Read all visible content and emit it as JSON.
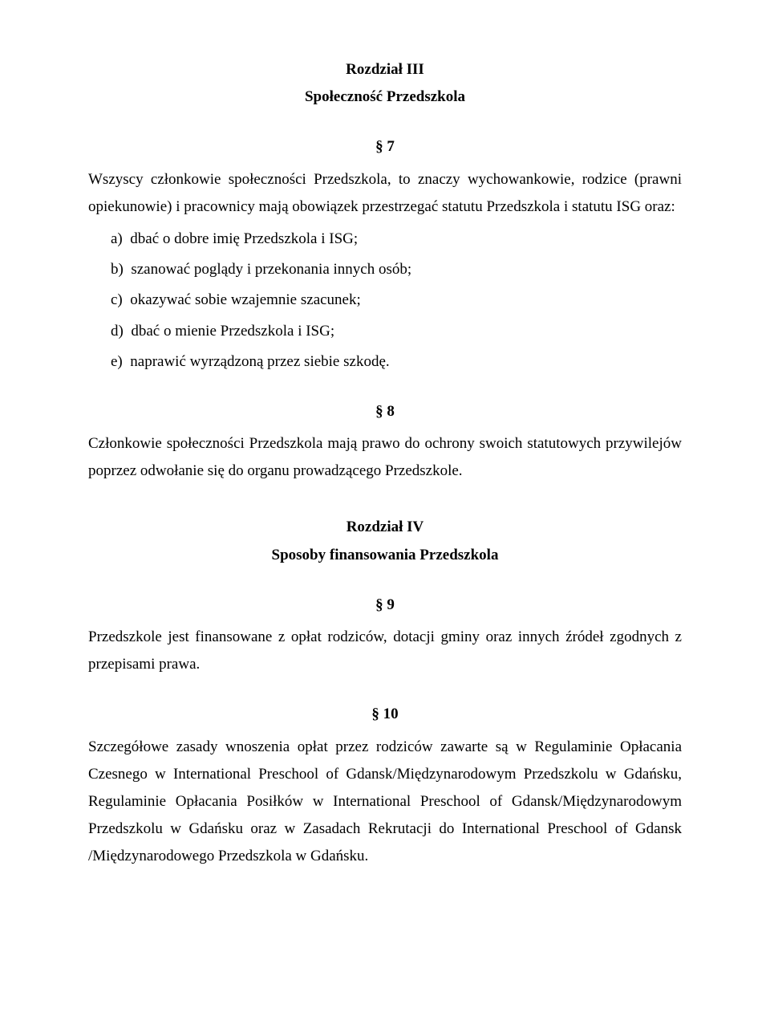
{
  "chapter3": {
    "heading": "Rozdział III",
    "subheading": "Społeczność Przedszkola"
  },
  "s7": {
    "num": "§ 7",
    "intro": "Wszyscy członkowie społeczności Przedszkola, to znaczy wychowankowie, rodzice (prawni opiekunowie) i pracownicy mają obowiązek przestrzegać statutu Przedszkola i statutu ISG oraz:",
    "items": [
      {
        "marker": "a)",
        "text": "dbać o dobre imię Przedszkola i ISG;"
      },
      {
        "marker": "b)",
        "text": "szanować poglądy i przekonania innych osób;"
      },
      {
        "marker": "c)",
        "text": "okazywać sobie wzajemnie szacunek;"
      },
      {
        "marker": "d)",
        "text": "dbać o mienie Przedszkola i ISG;"
      },
      {
        "marker": "e)",
        "text": "naprawić wyrządzoną przez siebie szkodę."
      }
    ]
  },
  "s8": {
    "num": "§ 8",
    "body": "Członkowie społeczności Przedszkola mają prawo do ochrony swoich statutowych przywilejów poprzez odwołanie się do organu prowadzącego Przedszkole."
  },
  "chapter4": {
    "heading": "Rozdział IV",
    "subheading": "Sposoby finansowania Przedszkola"
  },
  "s9": {
    "num": "§ 9",
    "body": "Przedszkole jest finansowane z opłat rodziców, dotacji gminy oraz innych źródeł zgodnych z przepisami prawa."
  },
  "s10": {
    "num": "§ 10",
    "body": "Szczegółowe zasady wnoszenia opłat przez rodziców zawarte są w Regulaminie Opłacania Czesnego w International Preschool of Gdansk/Międzynarodowym Przedszkolu w Gdańsku, Regulaminie Opłacania Posiłków w International Preschool of Gdansk/Międzynarodowym Przedszkolu w Gdańsku oraz w Zasadach Rekrutacji do International Preschool of Gdansk /Międzynarodowego Przedszkola w Gdańsku."
  }
}
